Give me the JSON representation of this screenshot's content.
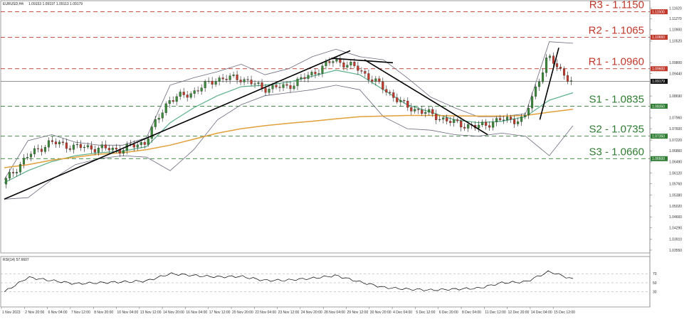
{
  "header": {
    "symbol_line": "EURUSD,H4",
    "ohlc_line": "1.09153 1.09197 1.09113 1.09179"
  },
  "indicator": {
    "label": "RSI(14) 57.6607",
    "levels": [
      70,
      50,
      30
    ],
    "level_labels": [
      "70",
      "50",
      "30"
    ]
  },
  "price_axis": {
    "labels": [
      "1.11620",
      "1.11270",
      "1.10900",
      "1.10520",
      "1.09800",
      "1.09440",
      "1.08690",
      "1.07960",
      "1.07600",
      "1.07220",
      "1.06860",
      "1.06490",
      "1.06120",
      "1.05760",
      "1.05380",
      "1.05020",
      "1.04660",
      "1.04290",
      "1.03910",
      "1.03550"
    ],
    "current_price": "1.09179"
  },
  "time_axis": {
    "labels": [
      "1 Nov 2023",
      "2 Nov 20:00",
      "6 Nov 04:00",
      "7 Nov 12:00",
      "8 Nov 20:00",
      "10 Nov 04:00",
      "13 Nov 12:00",
      "14 Nov 20:00",
      "16 Nov 04:00",
      "17 Nov 12:00",
      "20 Nov 20:00",
      "22 Nov 04:00",
      "23 Nov 12:00",
      "24 Nov 20:00",
      "28 Nov 04:00",
      "29 Nov 12:00",
      "30 Nov 20:00",
      "4 Dec 04:00",
      "5 Dec 12:00",
      "6 Dec 20:00",
      "8 Dec 04:00",
      "11 Dec 12:00",
      "12 Dec 20:00",
      "14 Dec 04:00",
      "15 Dec 12:00"
    ]
  },
  "levels": [
    {
      "name": "R3",
      "text": "R3 - 1.1150",
      "value": 1.115,
      "tag": "1.11500",
      "kind": "resistance"
    },
    {
      "name": "R2",
      "text": "R2 - 1.1065",
      "value": 1.1065,
      "tag": "1.10650",
      "kind": "resistance"
    },
    {
      "name": "R1",
      "text": "R1 - 1.0960",
      "value": 1.096,
      "tag": "1.09600",
      "kind": "resistance"
    },
    {
      "name": "S1",
      "text": "S1 - 1.0835",
      "value": 1.0835,
      "tag": "1.08350",
      "kind": "support"
    },
    {
      "name": "S2",
      "text": "S2 - 1.0735",
      "value": 1.0735,
      "tag": "1.07350",
      "kind": "support"
    },
    {
      "name": "S3",
      "text": "S3 - 1.0660",
      "value": 1.066,
      "tag": "1.06600",
      "kind": "support"
    }
  ],
  "colors": {
    "resistance": "#c0392b",
    "support": "#2e7d32",
    "ma_fast": "#5bb08a",
    "ma_slow": "#e2a03a",
    "bollinger": "#6b6b80",
    "bull": "#3a8a3a",
    "bear": "#c0392b",
    "trendline": "#000000",
    "rsi": "#000000"
  },
  "chart_data": {
    "type": "line",
    "title": "EURUSD,H4",
    "xlabel": "",
    "ylabel": "",
    "ylim": [
      1.0355,
      1.1175
    ],
    "grid": false,
    "x": [
      "1 Nov 2023",
      "2 Nov 20:00",
      "6 Nov 04:00",
      "7 Nov 12:00",
      "8 Nov 20:00",
      "10 Nov 04:00",
      "13 Nov 12:00",
      "14 Nov 20:00",
      "16 Nov 04:00",
      "17 Nov 12:00",
      "20 Nov 20:00",
      "22 Nov 04:00",
      "23 Nov 12:00",
      "24 Nov 20:00",
      "28 Nov 04:00",
      "29 Nov 12:00",
      "30 Nov 20:00",
      "4 Dec 04:00",
      "5 Dec 12:00",
      "6 Dec 20:00",
      "8 Dec 04:00",
      "11 Dec 12:00",
      "12 Dec 20:00",
      "14 Dec 04:00",
      "15 Dec 12:00"
    ],
    "series": [
      {
        "values": [
          1.0575,
          1.0665,
          1.0715,
          1.07,
          1.0695,
          1.069,
          1.0715,
          1.0855,
          1.088,
          1.0925,
          1.093,
          1.0895,
          1.09,
          1.094,
          1.099,
          1.096,
          1.09,
          1.0835,
          1.081,
          1.078,
          1.0765,
          1.079,
          1.079,
          1.1,
          1.0918
        ]
      },
      {
        "values": [
          1.058,
          1.062,
          1.065,
          1.067,
          1.068,
          1.0685,
          1.07,
          1.078,
          1.083,
          1.087,
          1.09,
          1.0905,
          1.0915,
          1.0935,
          1.0955,
          1.094,
          1.089,
          1.084,
          1.0815,
          1.079,
          1.078,
          1.0785,
          1.08,
          1.0855,
          1.088
        ]
      },
      {
        "values": [
          1.063,
          1.064,
          1.0655,
          1.0665,
          1.0675,
          1.068,
          1.069,
          1.0705,
          1.0725,
          1.0745,
          1.076,
          1.077,
          1.0778,
          1.0785,
          1.0793,
          1.08,
          1.0802,
          1.0804,
          1.0804,
          1.0803,
          1.0802,
          1.0802,
          1.0804,
          1.0815,
          1.0825
        ]
      },
      {
        "values": [
          1.059,
          1.072,
          1.074,
          1.0715,
          1.0705,
          1.0705,
          1.073,
          1.0905,
          1.093,
          1.095,
          1.0975,
          1.094,
          1.096,
          1.1,
          1.1025,
          1.1,
          1.099,
          1.093,
          1.0865,
          1.083,
          1.08,
          1.08,
          1.081,
          1.105,
          1.1045
        ]
      },
      {
        "values": [
          1.0525,
          1.053,
          1.059,
          1.064,
          1.066,
          1.067,
          1.0665,
          1.062,
          1.069,
          1.079,
          1.084,
          1.087,
          1.088,
          1.089,
          1.0905,
          1.089,
          1.08,
          1.076,
          1.0755,
          1.074,
          1.0735,
          1.0745,
          1.0735,
          1.067,
          1.077
        ]
      },
      {
        "values": [
          30,
          62,
          55,
          48,
          50,
          52,
          54,
          70,
          66,
          63,
          64,
          55,
          56,
          60,
          66,
          52,
          40,
          36,
          34,
          36,
          38,
          50,
          52,
          75,
          57.66
        ]
      }
    ]
  }
}
